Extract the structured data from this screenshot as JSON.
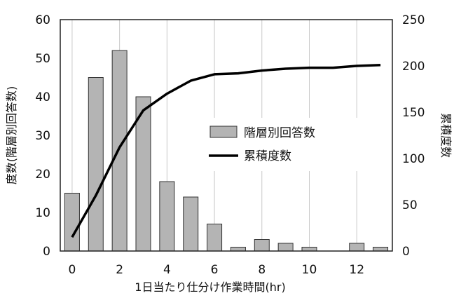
{
  "chart_data": {
    "type": "bar+line",
    "xlabel": "1日当たり仕分け作業時間(hr)",
    "ylabel_left": "度数(階層別回答数)",
    "ylabel_right": "累積度数",
    "x_ticks": [
      "0",
      "2",
      "4",
      "6",
      "8",
      "10",
      "12"
    ],
    "y_left_ticks": [
      "0",
      "10",
      "20",
      "30",
      "40",
      "50",
      "60"
    ],
    "y_right_ticks": [
      "0",
      "50",
      "100",
      "150",
      "200",
      "250"
    ],
    "xlim": [
      -0.5,
      13.5
    ],
    "ylim_left": [
      0,
      60
    ],
    "ylim_right": [
      0,
      250
    ],
    "grid": "vertical",
    "legend_position": "center-right",
    "series": [
      {
        "name": "階層別回答数",
        "type": "bar",
        "axis": "left",
        "color": "#b4b4b4",
        "x": [
          0,
          1,
          2,
          3,
          4,
          5,
          6,
          7,
          8,
          9,
          10,
          11,
          12,
          13
        ],
        "values": [
          15,
          45,
          52,
          40,
          18,
          14,
          7,
          1,
          3,
          2,
          1,
          0,
          2,
          1
        ]
      },
      {
        "name": "累積度数",
        "type": "line",
        "axis": "right",
        "color": "#000000",
        "x": [
          0,
          1,
          2,
          3,
          4,
          5,
          6,
          7,
          8,
          9,
          10,
          11,
          12,
          13
        ],
        "values": [
          15,
          60,
          112,
          152,
          170,
          184,
          191,
          192,
          195,
          197,
          198,
          198,
          200,
          201
        ]
      }
    ]
  }
}
